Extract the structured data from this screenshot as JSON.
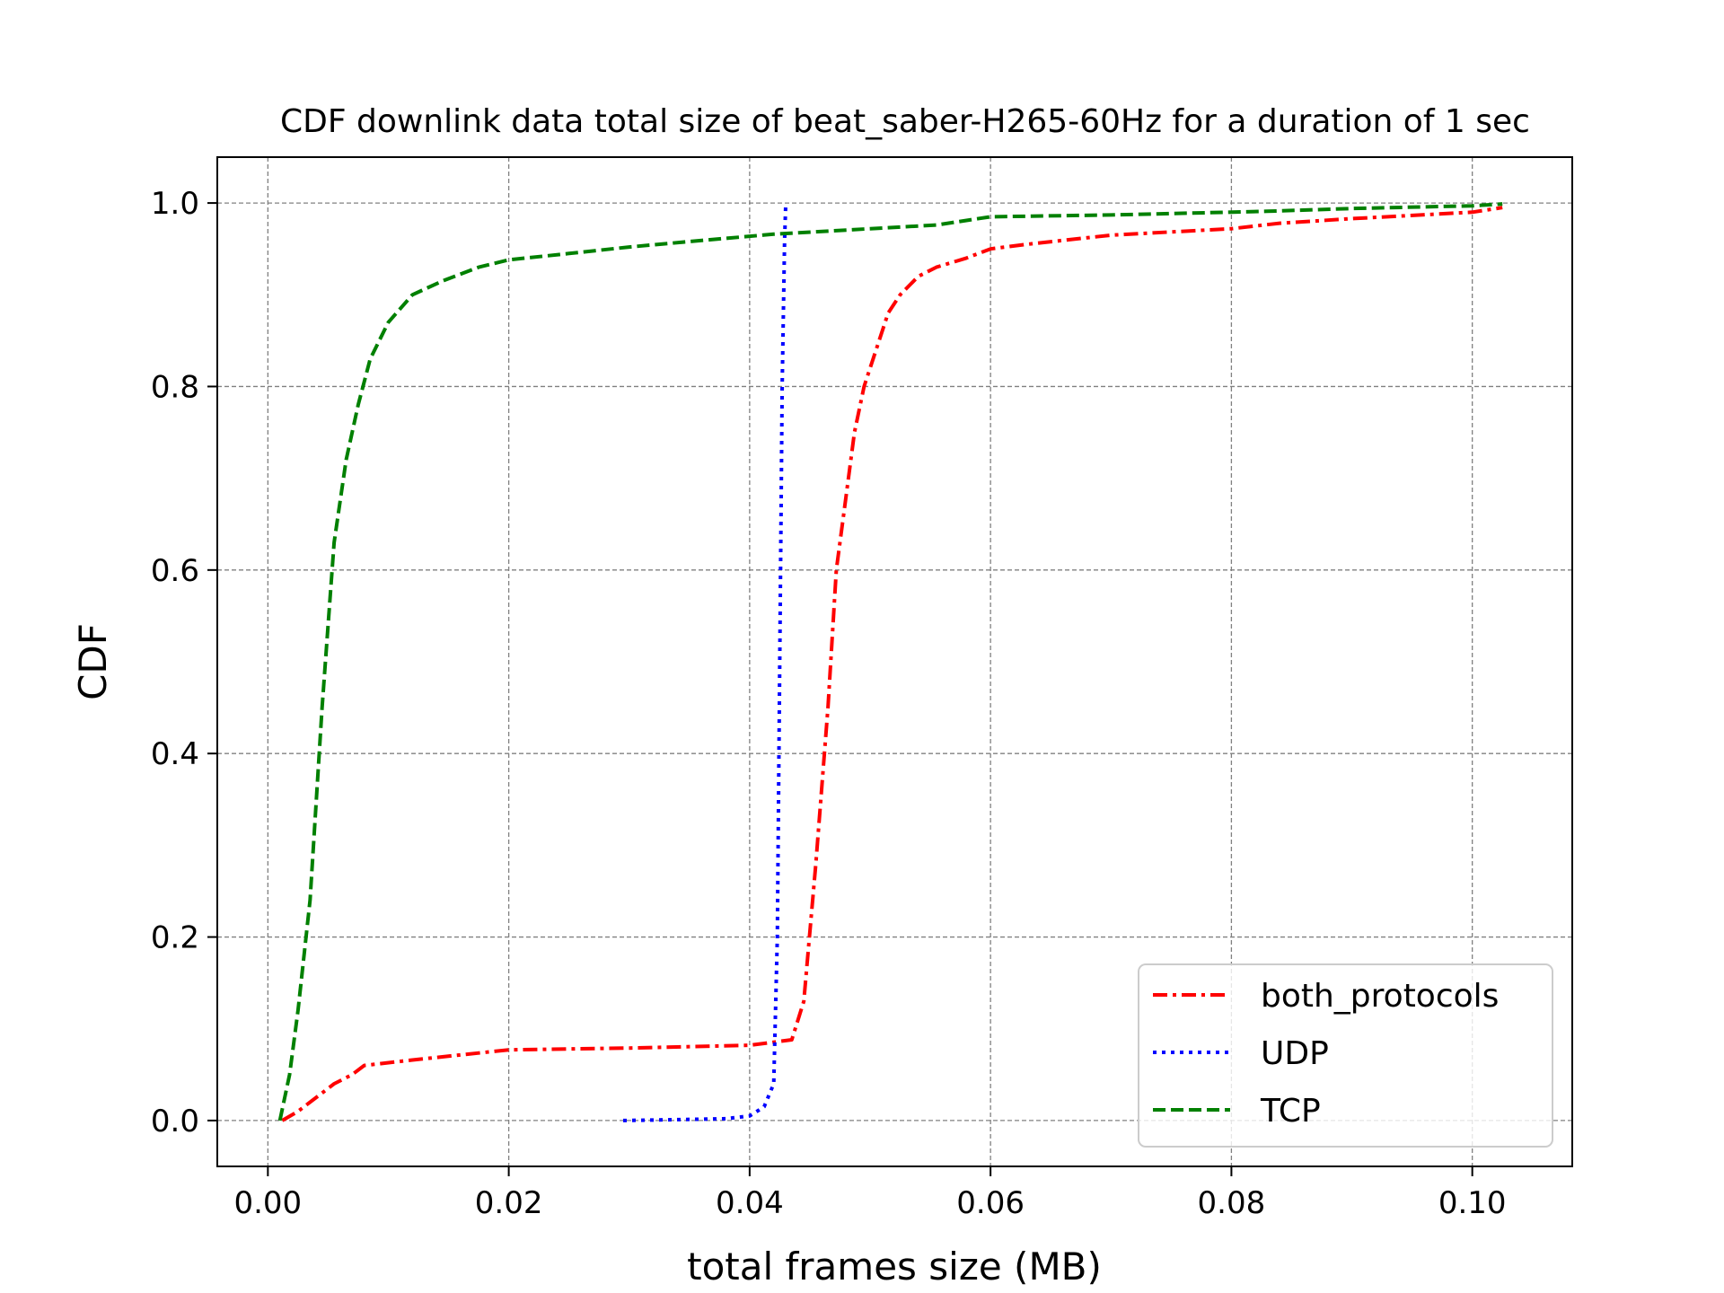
{
  "chart_data": {
    "type": "line",
    "title": "CDF downlink data total size of beat_saber-H265-60Hz for a duration of 1 sec",
    "xlabel": "total frames size (MB)",
    "ylabel": "CDF",
    "xlim": [
      -0.0042,
      0.1083
    ],
    "ylim": [
      -0.05,
      1.05
    ],
    "xticks": [
      0.0,
      0.02,
      0.04,
      0.06,
      0.08,
      0.1
    ],
    "xtick_labels": [
      "0.00",
      "0.02",
      "0.04",
      "0.06",
      "0.08",
      "0.10"
    ],
    "yticks": [
      0.0,
      0.2,
      0.4,
      0.6,
      0.8,
      1.0
    ],
    "ytick_labels": [
      "0.0",
      "0.2",
      "0.4",
      "0.6",
      "0.8",
      "1.0"
    ],
    "grid": true,
    "legend_position": "lower-right",
    "series": [
      {
        "name": "both_protocols",
        "color": "#ff0000",
        "linestyle": "dashdot",
        "x": [
          0.0012,
          0.0025,
          0.004,
          0.0055,
          0.007,
          0.008,
          0.012,
          0.02,
          0.03,
          0.04,
          0.0435,
          0.0445,
          0.0455,
          0.0465,
          0.0472,
          0.048,
          0.0487,
          0.0495,
          0.0505,
          0.0515,
          0.0525,
          0.054,
          0.0555,
          0.058,
          0.06,
          0.063,
          0.07,
          0.08,
          0.084,
          0.09,
          0.1,
          0.1025
        ],
        "y": [
          0.0,
          0.01,
          0.025,
          0.04,
          0.05,
          0.06,
          0.066,
          0.077,
          0.079,
          0.082,
          0.088,
          0.13,
          0.28,
          0.45,
          0.6,
          0.68,
          0.75,
          0.8,
          0.84,
          0.88,
          0.9,
          0.92,
          0.93,
          0.94,
          0.95,
          0.955,
          0.965,
          0.972,
          0.978,
          0.983,
          0.99,
          0.995
        ]
      },
      {
        "name": "UDP",
        "color": "#0000ff",
        "linestyle": "dotted",
        "x": [
          0.0295,
          0.034,
          0.038,
          0.04,
          0.0412,
          0.042,
          0.0423,
          0.0425,
          0.0427,
          0.0429,
          0.043
        ],
        "y": [
          0.0,
          0.001,
          0.002,
          0.005,
          0.015,
          0.04,
          0.2,
          0.5,
          0.8,
          0.96,
          1.0
        ]
      },
      {
        "name": "TCP",
        "color": "#008000",
        "linestyle": "dashed",
        "x": [
          0.001,
          0.0018,
          0.0025,
          0.0035,
          0.0045,
          0.0055,
          0.0065,
          0.0075,
          0.0085,
          0.01,
          0.012,
          0.0145,
          0.0175,
          0.02,
          0.025,
          0.03,
          0.035,
          0.042,
          0.05,
          0.0555,
          0.06,
          0.07,
          0.083,
          0.09,
          0.1,
          0.1025
        ],
        "y": [
          0.0,
          0.05,
          0.12,
          0.24,
          0.45,
          0.63,
          0.72,
          0.78,
          0.83,
          0.87,
          0.9,
          0.915,
          0.93,
          0.938,
          0.945,
          0.952,
          0.958,
          0.966,
          0.972,
          0.976,
          0.985,
          0.987,
          0.991,
          0.994,
          0.997,
          0.999
        ]
      }
    ]
  }
}
